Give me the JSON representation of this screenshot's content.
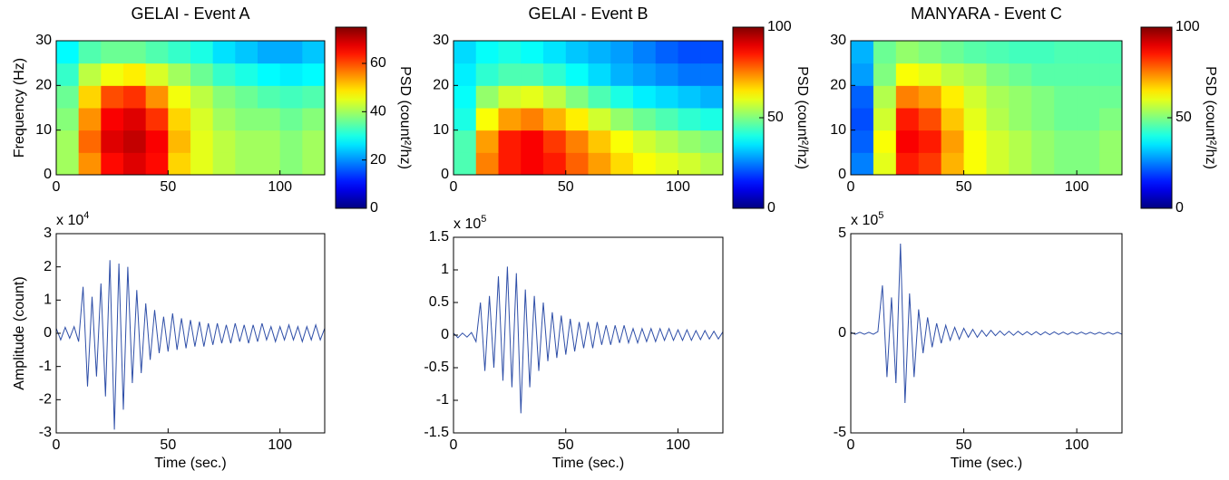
{
  "chart_data": [
    {
      "type": "heatmap",
      "title": "GELAI - Event A",
      "ylabel": "Frequency (Hz)",
      "colormap": "jet",
      "xlim": [
        0,
        120
      ],
      "xticks": [
        0,
        50,
        100
      ],
      "ylim": [
        0,
        30
      ],
      "yticks": [
        0,
        10,
        20,
        30
      ],
      "clim": [
        0,
        75
      ],
      "cticks": [
        0,
        20,
        40,
        60
      ],
      "colorbar_label": "PSD (count²/hz)",
      "x": [
        5,
        15,
        25,
        35,
        45,
        55,
        65,
        75,
        85,
        95,
        105,
        115
      ],
      "y": [
        2.5,
        7.5,
        12.5,
        17.5,
        22.5,
        27.5
      ],
      "z": [
        [
          40,
          55,
          65,
          68,
          65,
          50,
          45,
          42,
          40,
          40,
          38,
          40
        ],
        [
          40,
          58,
          68,
          70,
          66,
          52,
          45,
          42,
          40,
          40,
          38,
          40
        ],
        [
          38,
          55,
          66,
          68,
          62,
          50,
          44,
          40,
          38,
          38,
          36,
          38
        ],
        [
          36,
          50,
          60,
          62,
          55,
          46,
          42,
          38,
          36,
          34,
          33,
          34
        ],
        [
          32,
          42,
          46,
          48,
          44,
          40,
          36,
          32,
          30,
          28,
          27,
          28
        ],
        [
          28,
          34,
          36,
          36,
          34,
          32,
          30,
          26,
          24,
          22,
          22,
          24
        ]
      ]
    },
    {
      "type": "line",
      "xlabel": "Time (sec.)",
      "ylabel": "Amplitude (count)",
      "exponent": {
        "base": "x 10",
        "power": "4"
      },
      "color": "#2f4fa8",
      "xlim": [
        0,
        120
      ],
      "xticks": [
        0,
        50,
        100
      ],
      "ylim": [
        -3,
        3
      ],
      "yticks": [
        -3,
        -2,
        -1,
        0,
        1,
        2,
        3
      ],
      "x": [
        0,
        2,
        4,
        6,
        8,
        10,
        12,
        14,
        16,
        18,
        20,
        22,
        24,
        26,
        28,
        30,
        32,
        34,
        36,
        38,
        40,
        42,
        44,
        46,
        48,
        50,
        52,
        54,
        56,
        58,
        60,
        62,
        64,
        66,
        68,
        70,
        72,
        74,
        76,
        78,
        80,
        82,
        84,
        86,
        88,
        90,
        92,
        94,
        96,
        98,
        100,
        102,
        104,
        106,
        108,
        110,
        112,
        114,
        116,
        118,
        120
      ],
      "values": [
        0.15,
        -0.2,
        0.18,
        -0.15,
        0.2,
        -0.25,
        1.4,
        -1.6,
        1.1,
        -1.3,
        1.5,
        -1.9,
        2.2,
        -2.9,
        2.1,
        -2.3,
        2.0,
        -1.5,
        1.3,
        -1.2,
        0.9,
        -0.8,
        0.7,
        -0.6,
        0.5,
        -0.55,
        0.6,
        -0.5,
        0.45,
        -0.45,
        0.4,
        -0.4,
        0.35,
        -0.4,
        0.3,
        -0.35,
        0.3,
        -0.3,
        0.25,
        -0.3,
        0.3,
        -0.25,
        0.25,
        -0.3,
        0.25,
        -0.25,
        0.3,
        -0.2,
        0.2,
        -0.25,
        0.2,
        -0.2,
        0.25,
        -0.2,
        0.2,
        -0.25,
        0.2,
        -0.2,
        0.25,
        -0.2,
        0.15
      ]
    },
    {
      "type": "heatmap",
      "title": "GELAI - Event B",
      "colormap": "jet",
      "xlim": [
        0,
        120
      ],
      "xticks": [
        0,
        50,
        100
      ],
      "ylim": [
        0,
        30
      ],
      "yticks": [
        0,
        10,
        20,
        30
      ],
      "clim": [
        0,
        100
      ],
      "cticks": [
        0,
        50,
        100
      ],
      "colorbar_label": "PSD (count²/hz)",
      "x": [
        5,
        15,
        25,
        35,
        45,
        55,
        65,
        75,
        85,
        95,
        105,
        115
      ],
      "y": [
        2.5,
        7.5,
        12.5,
        17.5,
        22.5,
        27.5
      ],
      "z": [
        [
          45,
          75,
          85,
          88,
          85,
          78,
          72,
          66,
          62,
          60,
          58,
          55
        ],
        [
          45,
          72,
          85,
          88,
          82,
          75,
          68,
          62,
          58,
          55,
          52,
          50
        ],
        [
          40,
          62,
          72,
          75,
          70,
          64,
          58,
          52,
          48,
          45,
          42,
          40
        ],
        [
          38,
          52,
          58,
          60,
          56,
          50,
          45,
          40,
          36,
          34,
          32,
          30
        ],
        [
          36,
          42,
          45,
          45,
          42,
          38,
          34,
          30,
          28,
          26,
          24,
          24
        ],
        [
          34,
          38,
          40,
          38,
          35,
          32,
          30,
          28,
          25,
          22,
          20,
          20
        ]
      ]
    },
    {
      "type": "line",
      "xlabel": "Time (sec.)",
      "exponent": {
        "base": "x 10",
        "power": "5"
      },
      "color": "#2f4fa8",
      "xlim": [
        0,
        120
      ],
      "xticks": [
        0,
        50,
        100
      ],
      "ylim": [
        -1.5,
        1.5
      ],
      "yticks": [
        -1.5,
        -1,
        -0.5,
        0,
        0.5,
        1,
        1.5
      ],
      "x": [
        0,
        2,
        4,
        6,
        8,
        10,
        12,
        14,
        16,
        18,
        20,
        22,
        24,
        26,
        28,
        30,
        32,
        34,
        36,
        38,
        40,
        42,
        44,
        46,
        48,
        50,
        52,
        54,
        56,
        58,
        60,
        62,
        64,
        66,
        68,
        70,
        72,
        74,
        76,
        78,
        80,
        82,
        84,
        86,
        88,
        90,
        92,
        94,
        96,
        98,
        100,
        102,
        104,
        106,
        108,
        110,
        112,
        114,
        116,
        118,
        120
      ],
      "values": [
        0.03,
        -0.04,
        0.03,
        -0.03,
        0.04,
        -0.1,
        0.5,
        -0.55,
        0.6,
        -0.5,
        0.9,
        -0.7,
        1.05,
        -0.8,
        0.95,
        -1.2,
        0.7,
        -0.8,
        0.6,
        -0.55,
        0.5,
        -0.4,
        0.35,
        -0.35,
        0.3,
        -0.3,
        0.25,
        -0.25,
        0.2,
        -0.2,
        0.2,
        -0.2,
        0.2,
        -0.15,
        0.15,
        -0.15,
        0.15,
        -0.12,
        0.15,
        -0.12,
        0.1,
        -0.12,
        0.1,
        -0.1,
        0.1,
        -0.1,
        0.1,
        -0.08,
        0.1,
        -0.08,
        0.08,
        -0.08,
        0.08,
        -0.08,
        0.07,
        -0.07,
        0.07,
        -0.06,
        0.06,
        -0.06,
        0.05
      ]
    },
    {
      "type": "heatmap",
      "title": "MANYARA - Event C",
      "colormap": "jet",
      "xlim": [
        0,
        120
      ],
      "xticks": [
        0,
        50,
        100
      ],
      "ylim": [
        0,
        30
      ],
      "yticks": [
        0,
        10,
        20,
        30
      ],
      "clim": [
        0,
        100
      ],
      "cticks": [
        0,
        50,
        100
      ],
      "colorbar_label": "PSD (count²/hz)",
      "x": [
        5,
        15,
        25,
        35,
        45,
        55,
        65,
        75,
        85,
        95,
        105,
        115
      ],
      "y": [
        2.5,
        7.5,
        12.5,
        17.5,
        22.5,
        27.5
      ],
      "z": [
        [
          25,
          60,
          85,
          82,
          70,
          62,
          58,
          55,
          52,
          50,
          50,
          52
        ],
        [
          22,
          62,
          88,
          85,
          72,
          62,
          58,
          55,
          52,
          50,
          50,
          52
        ],
        [
          20,
          58,
          85,
          80,
          68,
          60,
          55,
          52,
          50,
          48,
          48,
          50
        ],
        [
          22,
          55,
          75,
          72,
          64,
          58,
          54,
          52,
          50,
          48,
          48,
          48
        ],
        [
          28,
          50,
          62,
          60,
          56,
          54,
          50,
          48,
          46,
          46,
          46,
          46
        ],
        [
          30,
          48,
          52,
          50,
          48,
          46,
          45,
          44,
          44,
          45,
          45,
          45
        ]
      ]
    },
    {
      "type": "line",
      "xlabel": "Time (sec.)",
      "exponent": {
        "base": "x 10",
        "power": "5"
      },
      "color": "#2f4fa8",
      "xlim": [
        0,
        120
      ],
      "xticks": [
        0,
        50,
        100
      ],
      "ylim": [
        -5,
        5
      ],
      "yticks": [
        -5,
        0,
        5
      ],
      "x": [
        0,
        2,
        4,
        6,
        8,
        10,
        12,
        14,
        16,
        18,
        20,
        22,
        24,
        26,
        28,
        30,
        32,
        34,
        36,
        38,
        40,
        42,
        44,
        46,
        48,
        50,
        52,
        54,
        56,
        58,
        60,
        62,
        64,
        66,
        68,
        70,
        72,
        74,
        76,
        78,
        80,
        82,
        84,
        86,
        88,
        90,
        92,
        94,
        96,
        98,
        100,
        102,
        104,
        106,
        108,
        110,
        112,
        114,
        116,
        118,
        120
      ],
      "values": [
        0.05,
        -0.05,
        0.05,
        -0.05,
        0.05,
        -0.05,
        0.08,
        2.4,
        -2.2,
        1.8,
        -2.5,
        4.5,
        -3.5,
        2.0,
        -2.2,
        1.2,
        -1.0,
        0.8,
        -0.7,
        0.5,
        -0.5,
        0.4,
        -0.35,
        0.3,
        -0.3,
        0.25,
        -0.2,
        0.2,
        -0.2,
        0.15,
        -0.15,
        0.15,
        -0.12,
        0.12,
        -0.1,
        0.1,
        -0.1,
        0.1,
        -0.08,
        0.08,
        -0.08,
        0.08,
        -0.08,
        0.07,
        -0.07,
        0.07,
        -0.06,
        0.06,
        -0.06,
        0.06,
        -0.05,
        0.06,
        -0.05,
        0.05,
        -0.05,
        0.05,
        -0.05,
        0.05,
        -0.05,
        0.05,
        -0.05
      ]
    }
  ]
}
